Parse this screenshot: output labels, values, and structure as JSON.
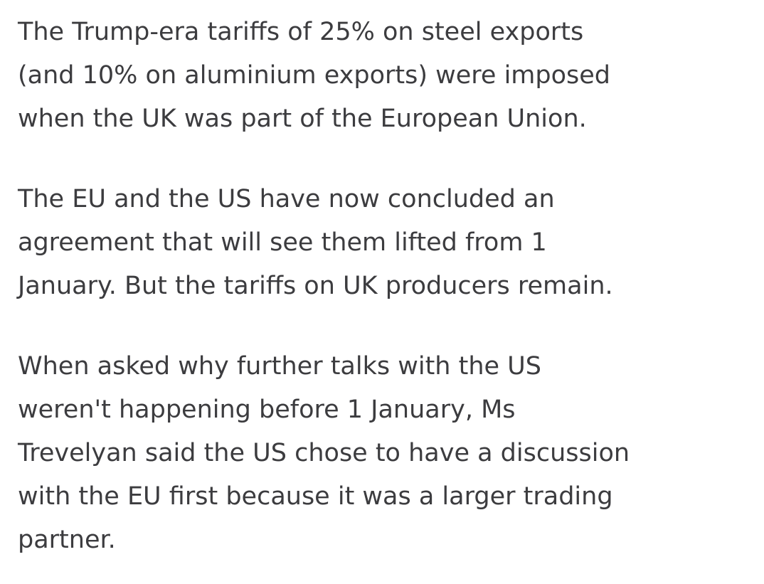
{
  "article": {
    "paragraphs": [
      [
        "The Trump-era tariffs of 25% on steel exports",
        "(and 10% on aluminium exports) were imposed",
        "when the UK was part of the European Union."
      ],
      [
        "The EU and the US have now concluded an",
        "agreement that will see them lifted from 1",
        "January. But the tariffs on UK producers remain."
      ],
      [
        "When asked why further talks with the US",
        "weren't happening before 1 January, Ms",
        "Trevelyan said the US chose to have a discussion",
        "with the EU first because it was a larger trading",
        "partner."
      ]
    ]
  }
}
